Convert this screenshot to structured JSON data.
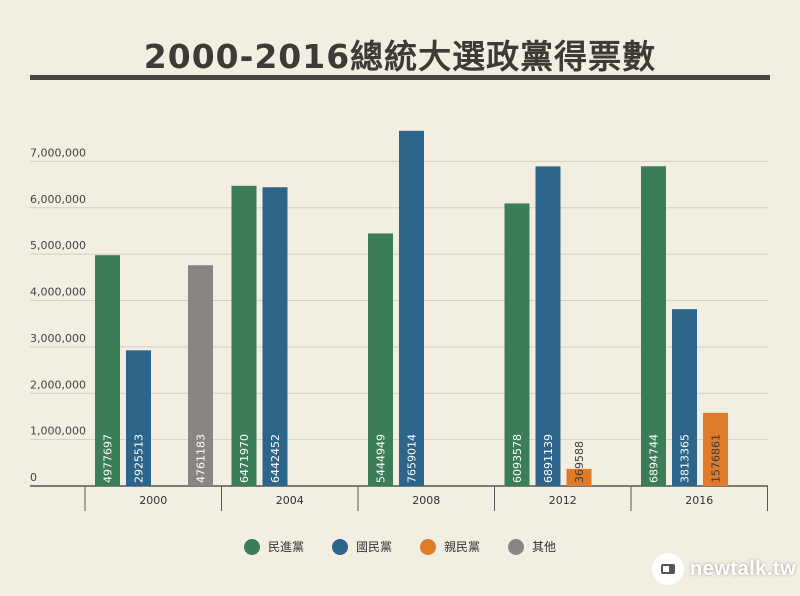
{
  "chart_data": {
    "type": "bar",
    "title": "2000-2016總統大選政黨得票數",
    "categories": [
      "2000",
      "2004",
      "2008",
      "2012",
      "2016"
    ],
    "ylim": [
      0,
      8000000
    ],
    "yticks": [
      {
        "value": 0,
        "label": "0"
      },
      {
        "value": 1000000,
        "label": "1,000,000"
      },
      {
        "value": 2000000,
        "label": "2,000,000"
      },
      {
        "value": 3000000,
        "label": "3,000,000"
      },
      {
        "value": 4000000,
        "label": "4,000,000"
      },
      {
        "value": 5000000,
        "label": "5,000,000"
      },
      {
        "value": 6000000,
        "label": "6,000,000"
      },
      {
        "value": 7000000,
        "label": "7,000,000"
      }
    ],
    "grid": true,
    "legend_position": "bottom",
    "series": [
      {
        "name": "民進黨",
        "color": "#3a7d58",
        "values": [
          4977697,
          6471970,
          5444949,
          6093578,
          6894744
        ]
      },
      {
        "name": "國民黨",
        "color": "#2d6489",
        "values": [
          2925513,
          6442452,
          7659014,
          6891139,
          3813365
        ]
      },
      {
        "name": "親民黨",
        "color": "#e07b2a",
        "values": [
          null,
          null,
          null,
          369588,
          1576861
        ]
      },
      {
        "name": "其他",
        "color": "#8a8482",
        "values": [
          4761183,
          null,
          null,
          null,
          null
        ]
      }
    ]
  },
  "logo": {
    "text": "newtalk.tw",
    "icon": "newtalk-badge-icon"
  }
}
